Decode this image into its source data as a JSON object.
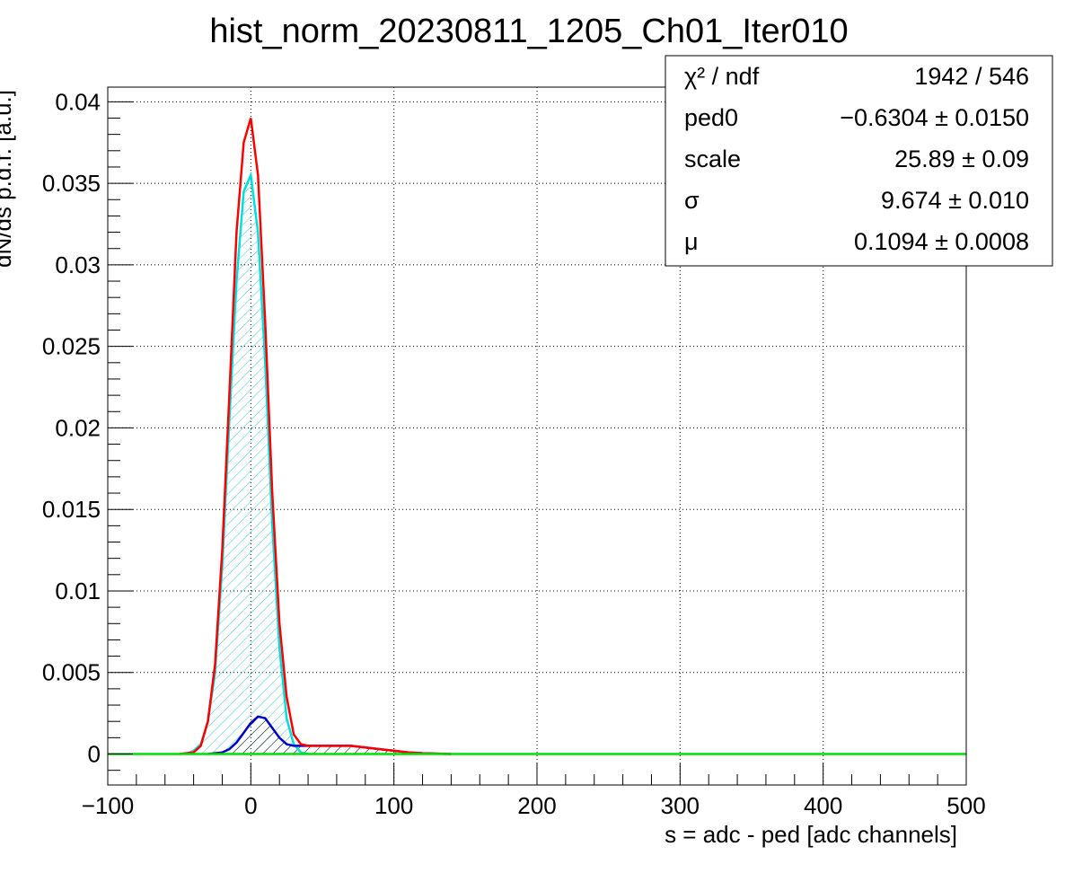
{
  "chart_data": {
    "type": "line",
    "title": "hist_norm_20230811_1205_Ch01_Iter010",
    "xlabel": "s = adc - ped [adc channels]",
    "ylabel": "dN/ds p.d.f. [a.u.]",
    "xlim": [
      -100,
      500
    ],
    "ylim": [
      -0.0019,
      0.0409
    ],
    "grid": true,
    "x_ticks": [
      -100,
      0,
      100,
      200,
      300,
      400,
      500
    ],
    "x_tick_labels": [
      "−100",
      "0",
      "100",
      "200",
      "300",
      "400",
      "500"
    ],
    "y_ticks": [
      0,
      0.005,
      0.01,
      0.015,
      0.02,
      0.025,
      0.03,
      0.035,
      0.04
    ],
    "y_tick_labels": [
      "0",
      "0.005",
      "0.01",
      "0.015",
      "0.02",
      "0.025",
      "0.03",
      "0.035",
      "0.04"
    ],
    "series": [
      {
        "color": "#ff0000",
        "style": "total-fit",
        "x": [
          -50,
          -40,
          -35,
          -30,
          -25,
          -20,
          -15,
          -10,
          -5,
          0,
          5,
          10,
          15,
          20,
          25,
          30,
          35,
          40,
          50,
          60,
          70,
          80,
          90,
          100,
          110,
          120,
          130,
          140
        ],
        "y": [
          0.0,
          0.0001,
          0.0005,
          0.002,
          0.0055,
          0.0125,
          0.022,
          0.032,
          0.0375,
          0.039,
          0.0355,
          0.0265,
          0.016,
          0.008,
          0.0035,
          0.0012,
          0.0006,
          0.0005,
          0.0005,
          0.0005,
          0.0005,
          0.0004,
          0.0003,
          0.0002,
          0.0001,
          5e-05,
          2e-05,
          0.0
        ]
      },
      {
        "color": "#00e0e0",
        "style": "pedestal-hatched",
        "x": [
          -45,
          -40,
          -35,
          -30,
          -25,
          -20,
          -15,
          -10,
          -5,
          0,
          5,
          10,
          15,
          20,
          25,
          30,
          35,
          40
        ],
        "y": [
          0.0,
          0.0002,
          0.0006,
          0.002,
          0.005,
          0.0115,
          0.0205,
          0.029,
          0.0345,
          0.0355,
          0.032,
          0.024,
          0.014,
          0.0065,
          0.0022,
          0.0006,
          0.0001,
          0.0
        ]
      },
      {
        "color": "#0000cc",
        "style": "signal-hatched",
        "x": [
          -30,
          -25,
          -20,
          -15,
          -10,
          -5,
          0,
          5,
          10,
          15,
          20,
          25,
          30,
          35,
          40,
          50,
          60,
          70,
          80,
          90,
          100,
          110,
          120,
          130,
          140
        ],
        "y": [
          0.0,
          5e-05,
          0.0001,
          0.0003,
          0.0007,
          0.0013,
          0.0019,
          0.0023,
          0.0022,
          0.0016,
          0.001,
          0.0006,
          0.0005,
          0.0005,
          0.0005,
          0.0005,
          0.0005,
          0.0005,
          0.0004,
          0.0003,
          0.0002,
          0.0001,
          5e-05,
          2e-05,
          0.0
        ]
      },
      {
        "color": "#00e000",
        "style": "baseline",
        "x": [
          -100,
          500
        ],
        "y": [
          0.0,
          0.0
        ]
      }
    ],
    "stats_box": [
      {
        "label": "χ² / ndf",
        "value": "1942 / 546"
      },
      {
        "label": "ped0",
        "value": "−0.6304 ± 0.0150"
      },
      {
        "label": "scale",
        "value": "25.89 ± 0.09"
      },
      {
        "label": "σ",
        "value": "9.674 ± 0.010"
      },
      {
        "label": "μ",
        "value": "0.1094 ± 0.0008"
      }
    ]
  }
}
